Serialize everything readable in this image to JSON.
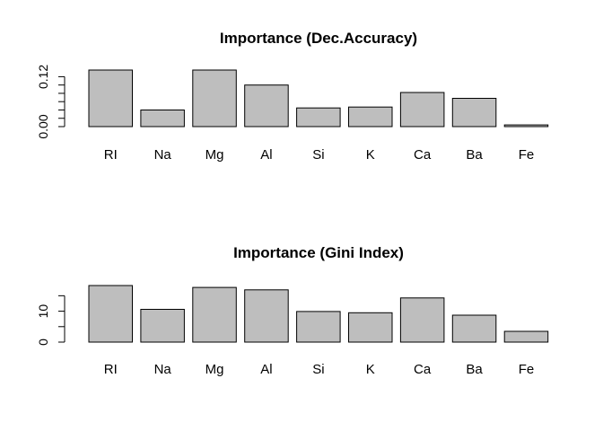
{
  "chart_data": [
    {
      "type": "bar",
      "title": "Importance (Dec.Accuracy)",
      "categories": [
        "RI",
        "Na",
        "Mg",
        "Al",
        "Si",
        "K",
        "Ca",
        "Ba",
        "Fe"
      ],
      "values": [
        0.136,
        0.04,
        0.136,
        0.1,
        0.045,
        0.047,
        0.082,
        0.068,
        0.004
      ],
      "yticks": [
        0.0,
        0.02,
        0.04,
        0.06,
        0.08,
        0.1,
        0.12
      ],
      "ytick_labels": [
        "0.00",
        "",
        "",
        "",
        "",
        "",
        "0.12"
      ],
      "ylim": [
        0,
        0.136
      ],
      "xlabel": "",
      "ylabel": "",
      "bar_color": "#bebebe",
      "grid": false,
      "legend": "none"
    },
    {
      "type": "bar",
      "title": "Importance (Gini Index)",
      "categories": [
        "RI",
        "Na",
        "Mg",
        "Al",
        "Si",
        "K",
        "Ca",
        "Ba",
        "Fe"
      ],
      "values": [
        18.3,
        10.6,
        17.7,
        16.9,
        9.9,
        9.5,
        14.3,
        8.7,
        3.5
      ],
      "yticks": [
        0,
        5,
        10,
        15
      ],
      "ytick_labels": [
        "0",
        "",
        "10",
        ""
      ],
      "ylim": [
        0,
        18.3
      ],
      "xlabel": "",
      "ylabel": "",
      "bar_color": "#bebebe",
      "grid": false,
      "legend": "none"
    }
  ]
}
